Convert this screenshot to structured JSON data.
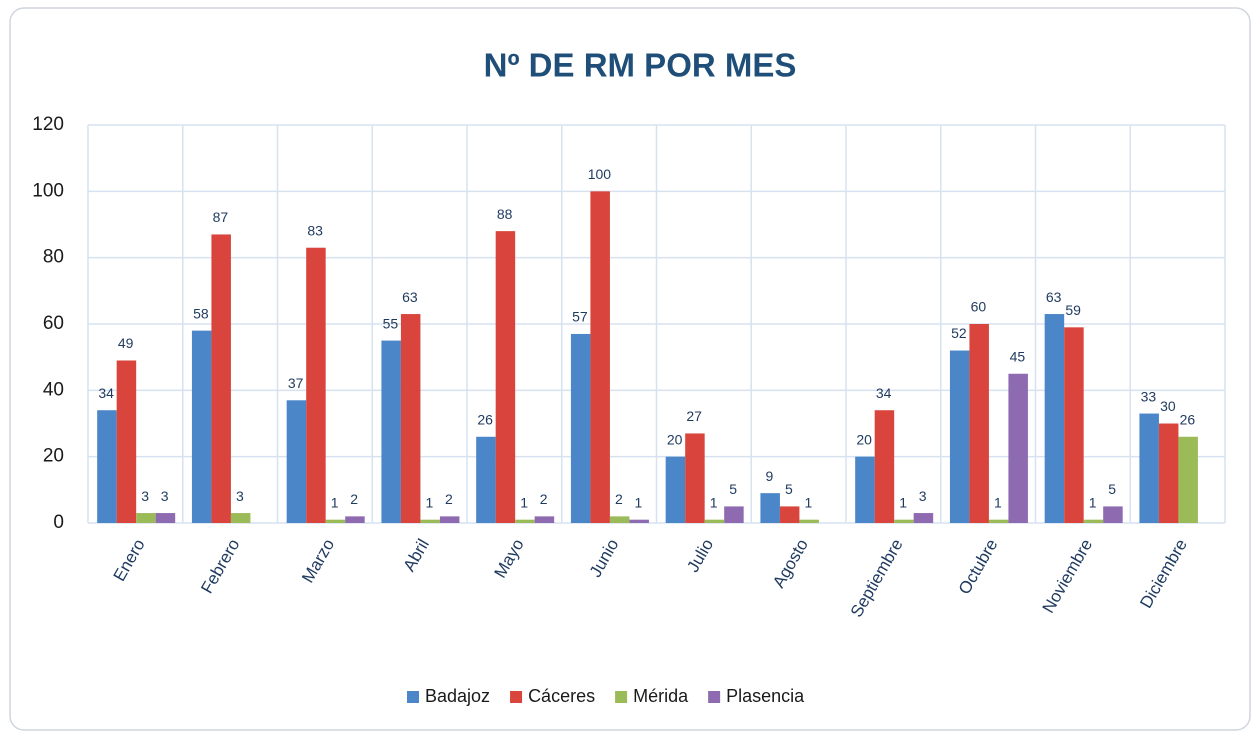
{
  "chart_data": {
    "type": "bar",
    "title": "Nº DE RM POR MES",
    "categories": [
      "Enero",
      "Febrero",
      "Marzo",
      "Abril",
      "Mayo",
      "Junio",
      "Julio",
      "Agosto",
      "Septiembre",
      "Octubre",
      "Noviembre",
      "Diciembre"
    ],
    "series": [
      {
        "name": "Badajoz",
        "color": "#4a86c8",
        "values": [
          34,
          58,
          37,
          55,
          26,
          57,
          20,
          9,
          20,
          52,
          63,
          33
        ]
      },
      {
        "name": "Cáceres",
        "color": "#d9453c",
        "values": [
          49,
          87,
          83,
          63,
          88,
          100,
          27,
          5,
          34,
          60,
          59,
          30
        ]
      },
      {
        "name": "Mérida",
        "color": "#9bbb59",
        "values": [
          3,
          3,
          1,
          1,
          1,
          2,
          1,
          1,
          1,
          1,
          1,
          26
        ]
      },
      {
        "name": "Plasencia",
        "color": "#8e6bb0",
        "values": [
          3,
          null,
          2,
          2,
          2,
          1,
          5,
          null,
          3,
          45,
          5,
          null
        ]
      }
    ],
    "ylim": [
      0,
      120
    ],
    "yticks": [
      0,
      20,
      40,
      60,
      80,
      100,
      120
    ],
    "grid": true,
    "legend": "bottom"
  }
}
